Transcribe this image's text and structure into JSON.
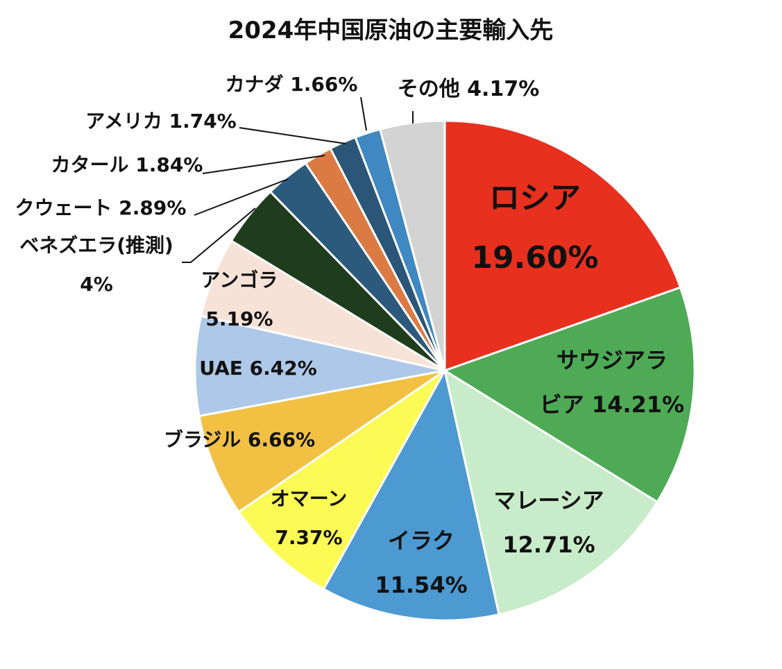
{
  "chart_data": {
    "type": "pie",
    "title": "2024年中国原油の主要輸入先",
    "unit": "%",
    "start_angle_deg": 0,
    "direction": "clockwise",
    "slices": [
      {
        "name": "ロシア",
        "value": 19.6,
        "value_label": "19.60%",
        "color": "#e8301f"
      },
      {
        "name": "サウジアラビア",
        "value": 14.21,
        "value_label": "14.21%",
        "color": "#4eaa55"
      },
      {
        "name": "マレーシア",
        "value": 12.71,
        "value_label": "12.71%",
        "color": "#c8ecc9"
      },
      {
        "name": "イラク",
        "value": 11.54,
        "value_label": "11.54%",
        "color": "#4d9ad2"
      },
      {
        "name": "オマーン",
        "value": 7.37,
        "value_label": "7.37%",
        "color": "#fcfb55"
      },
      {
        "name": "ブラジル",
        "value": 6.66,
        "value_label": "6.66%",
        "color": "#f2c144"
      },
      {
        "name": "UAE",
        "value": 6.42,
        "value_label": "6.42%",
        "color": "#adc8e8"
      },
      {
        "name": "アンゴラ",
        "value": 5.19,
        "value_label": "5.19%",
        "color": "#f7e2d8"
      },
      {
        "name": "ベネズエラ(推測)",
        "value": 4,
        "value_label": "4%",
        "color": "#1f3d1c"
      },
      {
        "name": "クウェート",
        "value": 2.89,
        "value_label": "2.89%",
        "color": "#2c5a7c"
      },
      {
        "name": "カタール",
        "value": 1.84,
        "value_label": "1.84%",
        "color": "#dc7a44"
      },
      {
        "name": "アメリカ",
        "value": 1.74,
        "value_label": "1.74%",
        "color": "#2b5677"
      },
      {
        "name": "カナダ",
        "value": 1.66,
        "value_label": "1.66%",
        "color": "#3f88c1"
      },
      {
        "name": "その他",
        "value": 4.17,
        "value_label": "4.17%",
        "color": "#d3d3d3"
      }
    ],
    "labels": [
      {
        "lines": [
          "ロシア",
          "19.60%"
        ]
      },
      {
        "lines": [
          "サウジアラ",
          "ビア 14.21%"
        ]
      },
      {
        "lines": [
          "マレーシア",
          "12.71%"
        ]
      },
      {
        "lines": [
          "イラク",
          "11.54%"
        ]
      },
      {
        "lines": [
          "オマーン",
          "7.37%"
        ]
      },
      {
        "lines": [
          "ブラジル 6.66%"
        ]
      },
      {
        "lines": [
          "UAE 6.42%"
        ]
      },
      {
        "lines": [
          "アンゴラ",
          "5.19%"
        ]
      },
      {
        "lines": [
          "ベネズエラ(推測)",
          "4%"
        ]
      },
      {
        "lines": [
          "クウェート 2.89%"
        ]
      },
      {
        "lines": [
          "カタール 1.84%"
        ]
      },
      {
        "lines": [
          "アメリカ 1.74%"
        ]
      },
      {
        "lines": [
          "カナダ 1.66%"
        ]
      },
      {
        "lines": [
          "その他 4.17%"
        ]
      }
    ]
  }
}
